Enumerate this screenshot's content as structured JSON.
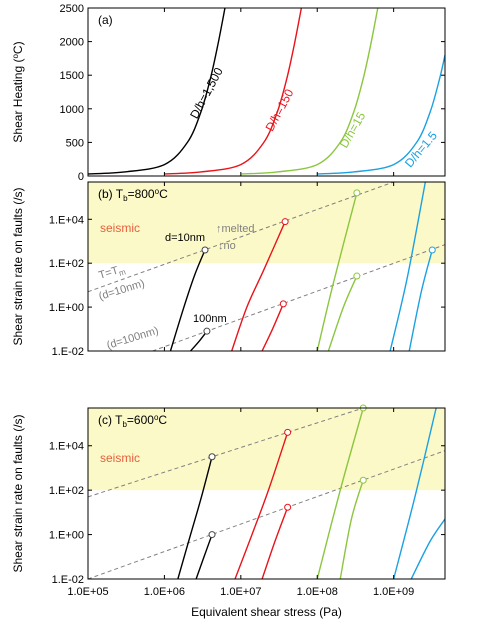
{
  "chart_data": [
    {
      "type": "line",
      "log_x": true,
      "log_y": false,
      "panel_label": "(a)",
      "ylabel": {
        "text": "Shear Heating (",
        "sup": "o",
        "end": "C)"
      },
      "xlim": [
        100000,
        4700000000
      ],
      "ylim": [
        0,
        2500
      ],
      "yticks": [
        0,
        500,
        1000,
        1500,
        2000,
        2500
      ],
      "series": [
        {
          "name": "D/h=1,500",
          "color": "#000000",
          "x": [
            100000,
            300000,
            1000000,
            2000000,
            3000000,
            4000000,
            5000000,
            6200000
          ],
          "values": [
            30,
            60,
            170,
            500,
            950,
            1450,
            1950,
            2500
          ]
        },
        {
          "name": "D/h=150",
          "color": "#e8141b",
          "x": [
            1000000,
            3000000,
            10000000,
            20000000,
            30000000,
            40000000,
            50000000,
            62000000
          ],
          "values": [
            30,
            60,
            170,
            500,
            950,
            1450,
            1950,
            2500
          ]
        },
        {
          "name": "D/h=15",
          "color": "#8cc63f",
          "x": [
            10000000,
            30000000,
            100000000,
            200000000,
            300000000,
            400000000,
            500000000,
            620000000
          ],
          "values": [
            30,
            60,
            170,
            500,
            950,
            1450,
            1950,
            2500
          ]
        },
        {
          "name": "D/h=1.5",
          "color": "#1ba1e2",
          "x": [
            100000000,
            300000000,
            1000000000,
            2000000000,
            3000000000,
            4000000000,
            4700000000
          ],
          "values": [
            30,
            60,
            170,
            500,
            950,
            1450,
            1800
          ]
        }
      ]
    },
    {
      "type": "line",
      "log_x": true,
      "log_y": true,
      "panel_label": {
        "text": "(b) T",
        "sub": "b",
        "rest": "=800",
        "sup": "o",
        "end": "C"
      },
      "ylabel": "Shear strain rate on faults (/s)",
      "shade_ylim": [
        100,
        500000
      ],
      "shade_color": "#fcf9c8",
      "xlim": [
        100000,
        4700000000
      ],
      "ylim": [
        0.01,
        500000
      ],
      "yticks": [
        {
          "value": 0.01,
          "label": "1.E-02"
        },
        {
          "value": 1,
          "label": "1.E+00"
        },
        {
          "value": 100,
          "label": "1.E+02"
        },
        {
          "value": 10000,
          "label": "1.E+04"
        }
      ],
      "annotations": [
        "seismic",
        "d=10nm",
        "↑melted",
        "↓no",
        {
          "text": "T=T",
          "sub": "m"
        },
        "(d=10nm)",
        "100nm",
        "(d=100nm)"
      ],
      "series": [
        {
          "color": "#808080",
          "dashed": true,
          "x": [
            100000,
            1000000000
          ],
          "values": [
            5,
            500000
          ]
        },
        {
          "color": "#808080",
          "dashed": true,
          "x": [
            700000,
            4700000000
          ],
          "values": [
            0.01,
            700
          ]
        },
        {
          "color": "#000000",
          "end_marker": true,
          "x": [
            1200000,
            1800000,
            2500000,
            3400000
          ],
          "values": [
            0.01,
            1,
            30,
            400
          ]
        },
        {
          "color": "#000000",
          "end_marker": true,
          "x": [
            2200000,
            2900000,
            3600000
          ],
          "values": [
            0.01,
            0.03,
            0.08
          ]
        },
        {
          "color": "#e8141b",
          "end_marker": true,
          "x": [
            7600000,
            12000000,
            20000000,
            38000000
          ],
          "values": [
            0.01,
            1,
            50,
            7800
          ]
        },
        {
          "color": "#e8141b",
          "end_marker": true,
          "x": [
            19000000,
            26000000,
            36000000
          ],
          "values": [
            0.01,
            0.1,
            1.4
          ]
        },
        {
          "color": "#8cc63f",
          "end_marker": true,
          "x": [
            100000000,
            160000000,
            330000000
          ],
          "values": [
            0.01,
            10,
            160000
          ]
        },
        {
          "color": "#8cc63f",
          "end_marker": true,
          "x": [
            140000000,
            220000000,
            330000000
          ],
          "values": [
            0.01,
            1,
            26
          ]
        },
        {
          "color": "#1ba1e2",
          "x": [
            900000000,
            1500000000,
            2600000000
          ],
          "values": [
            0.01,
            20,
            500000
          ]
        },
        {
          "color": "#1ba1e2",
          "end_marker": true,
          "x": [
            1600000000,
            2300000000,
            3200000000
          ],
          "values": [
            0.01,
            5,
            400
          ]
        }
      ]
    },
    {
      "type": "line",
      "log_x": true,
      "log_y": true,
      "panel_label": {
        "text": "(c) T",
        "sub": "b",
        "rest": "=600",
        "sup": "o",
        "end": "C"
      },
      "ylabel": "Shear strain rate on faults (/s)",
      "xlabel": "Equivalent shear stress (Pa)",
      "shade_ylim": [
        100,
        500000
      ],
      "shade_color": "#fcf9c8",
      "xlim": [
        100000,
        4700000000
      ],
      "ylim": [
        0.01,
        500000
      ],
      "xticks": [
        {
          "value": 100000,
          "label": "1.0E+05"
        },
        {
          "value": 1000000,
          "label": "1.0E+06"
        },
        {
          "value": 10000000,
          "label": "1.0E+07"
        },
        {
          "value": 100000000,
          "label": "1.0E+08"
        },
        {
          "value": 1000000000,
          "label": "1.0E+09"
        }
      ],
      "yticks": [
        {
          "value": 0.01,
          "label": "1.E-02"
        },
        {
          "value": 1,
          "label": "1.E+00"
        },
        {
          "value": 100,
          "label": "1.E+02"
        },
        {
          "value": 10000,
          "label": "1.E+04"
        }
      ],
      "annotations": [
        "seismic"
      ],
      "series": [
        {
          "color": "#808080",
          "dashed": true,
          "x": [
            100000,
            400000000
          ],
          "values": [
            50,
            500000
          ]
        },
        {
          "color": "#808080",
          "dashed": true,
          "x": [
            100000,
            4700000000
          ],
          "values": [
            0.01,
            6000
          ]
        },
        {
          "color": "#000000",
          "end_marker": true,
          "x": [
            1500000,
            2200000,
            3000000,
            4200000
          ],
          "values": [
            0.01,
            1,
            40,
            3200
          ]
        },
        {
          "color": "#000000",
          "end_marker": true,
          "x": [
            2600000,
            3300000,
            4200000
          ],
          "values": [
            0.01,
            0.1,
            1
          ]
        },
        {
          "color": "#e8141b",
          "end_marker": true,
          "x": [
            8400000,
            14000000,
            23000000,
            41000000
          ],
          "values": [
            0.01,
            1,
            100,
            40000
          ]
        },
        {
          "color": "#e8141b",
          "end_marker": true,
          "x": [
            19000000,
            28000000,
            41000000
          ],
          "values": [
            0.01,
            0.5,
            17
          ]
        },
        {
          "color": "#8cc63f",
          "end_marker": true,
          "x": [
            100000000,
            200000000,
            400000000
          ],
          "values": [
            0.01,
            100,
            500000
          ]
        },
        {
          "color": "#8cc63f",
          "end_marker": true,
          "x": [
            200000000,
            280000000,
            400000000
          ],
          "values": [
            0.01,
            5,
            280
          ]
        },
        {
          "color": "#1ba1e2",
          "x": [
            1000000000,
            1900000000,
            3600000000
          ],
          "values": [
            0.01,
            50,
            500000
          ]
        },
        {
          "color": "#1ba1e2",
          "x": [
            1700000000,
            3000000000,
            4700000000
          ],
          "values": [
            0.01,
            0.5,
            5
          ]
        }
      ]
    }
  ]
}
